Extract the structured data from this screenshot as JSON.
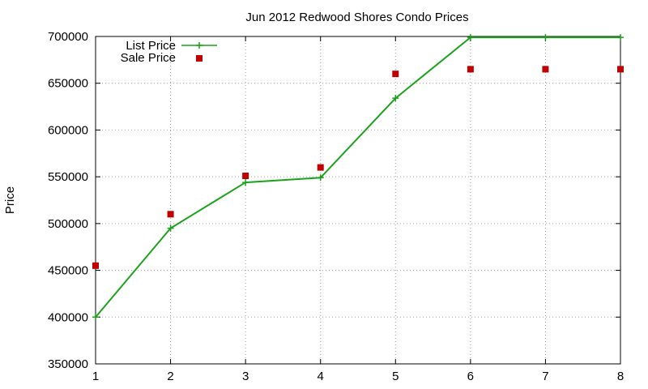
{
  "chart_data": {
    "type": "line",
    "title": "Jun 2012 Redwood Shores Condo Prices",
    "xlabel": "",
    "ylabel": "Price",
    "xlim": [
      1,
      8
    ],
    "ylim": [
      350000,
      700000
    ],
    "x_ticks": [
      1,
      2,
      3,
      4,
      5,
      6,
      7,
      8
    ],
    "y_ticks": [
      350000,
      400000,
      450000,
      500000,
      550000,
      600000,
      650000,
      700000
    ],
    "grid": true,
    "legend": "top-left",
    "x": [
      1,
      2,
      3,
      4,
      5,
      6,
      7,
      8
    ],
    "series": [
      {
        "name": "List Price",
        "style": "line+plus-markers",
        "color": "#1aa31a",
        "values": [
          400000,
          495000,
          544000,
          549000,
          634000,
          699000,
          699000,
          699000
        ]
      },
      {
        "name": "Sale Price",
        "style": "square-markers",
        "color": "#c00000",
        "values": [
          455000,
          510000,
          551000,
          560000,
          660000,
          665000,
          665000,
          665000
        ]
      }
    ]
  }
}
